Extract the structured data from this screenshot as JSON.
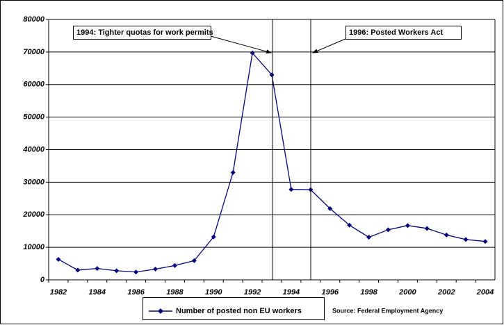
{
  "chart_data": {
    "type": "line",
    "categories": [
      "1982",
      null,
      "1984",
      null,
      "1986",
      null,
      "1988",
      null,
      "1990",
      null,
      "1992",
      null,
      "1994",
      null,
      "1996",
      null,
      "1998",
      null,
      "2000",
      null,
      "2002",
      null,
      "2004"
    ],
    "series": [
      {
        "name": "Number of posted non EU workers",
        "color": "#000080",
        "values": [
          6300,
          3000,
          3500,
          2800,
          2400,
          3300,
          4400,
          5900,
          13200,
          33000,
          69700,
          63000,
          27800,
          27700,
          21900,
          16800,
          13100,
          15400,
          16700,
          15800,
          13800,
          12400,
          11800
        ]
      }
    ],
    "ylim": [
      0,
      80000
    ],
    "yticks": [
      0,
      10000,
      20000,
      30000,
      40000,
      50000,
      60000,
      70000,
      80000
    ],
    "grid": true,
    "annotations": [
      "1994: Tighter quotas for work permits",
      "1996: Posted Workers Act"
    ],
    "source": "Source: Federal Employment Agency"
  }
}
